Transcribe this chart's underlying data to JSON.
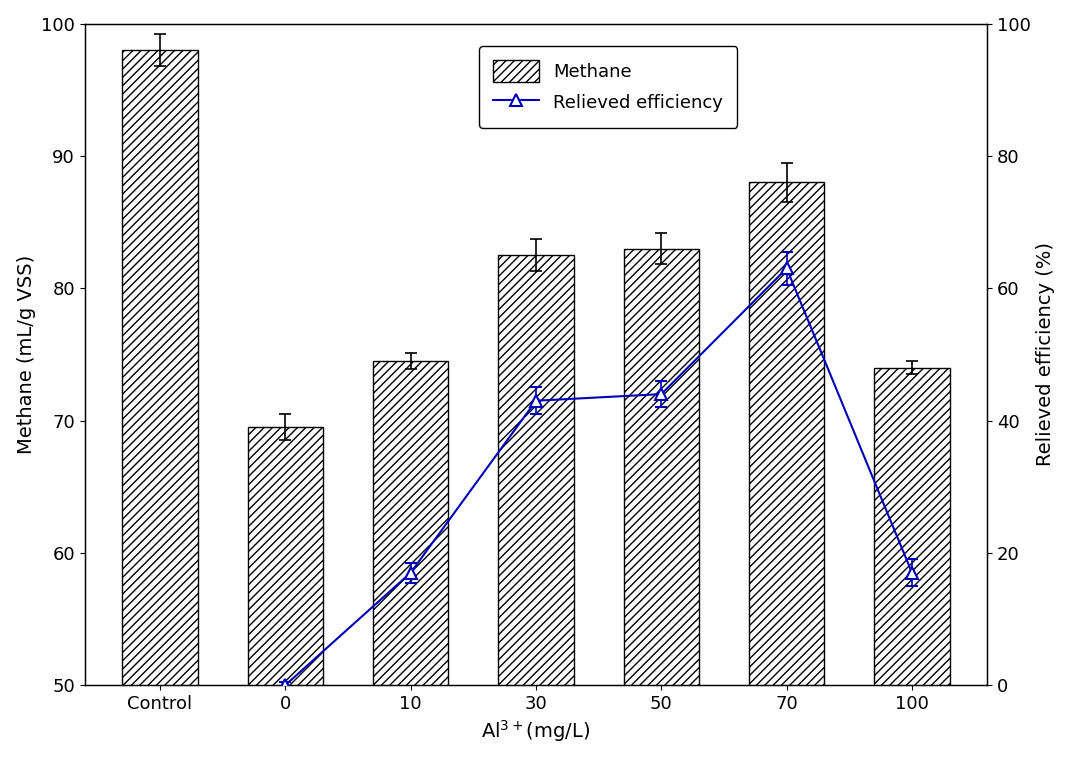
{
  "categories": [
    "Control",
    "0",
    "10",
    "30",
    "50",
    "70",
    "100"
  ],
  "bar_values": [
    98.0,
    69.5,
    74.5,
    82.5,
    83.0,
    88.0,
    74.0
  ],
  "bar_errors": [
    1.2,
    1.0,
    0.6,
    1.2,
    1.2,
    1.5,
    0.5
  ],
  "line_x_indices": [
    1,
    2,
    3,
    4,
    5,
    6
  ],
  "line_values": [
    0.0,
    17.0,
    43.0,
    44.0,
    63.0,
    17.0
  ],
  "line_errors": [
    0.5,
    1.5,
    2.0,
    2.0,
    2.5,
    2.0
  ],
  "bar_color": "#ffffff",
  "bar_edge_color": "#000000",
  "hatch": "////",
  "line_color": "#0000bb",
  "marker": "^",
  "marker_size": 8,
  "marker_facecolor": "white",
  "marker_edgecolor": "#0000bb",
  "xlabel": "Al$^{3+}$(mg/L)",
  "ylabel_left": "Methane (mL/g VSS)",
  "ylabel_right": "Relieved efficiency (%)",
  "ylim_left": [
    50,
    100
  ],
  "ylim_right": [
    0,
    100
  ],
  "yticks_left": [
    50,
    60,
    70,
    80,
    90,
    100
  ],
  "yticks_right": [
    0,
    20,
    40,
    60,
    80,
    100
  ],
  "legend_methane": "Methane",
  "legend_line": "Relieved efficiency",
  "background_color": "#ffffff",
  "bar_width": 0.6,
  "label_fontsize": 14,
  "tick_fontsize": 13,
  "legend_fontsize": 13
}
